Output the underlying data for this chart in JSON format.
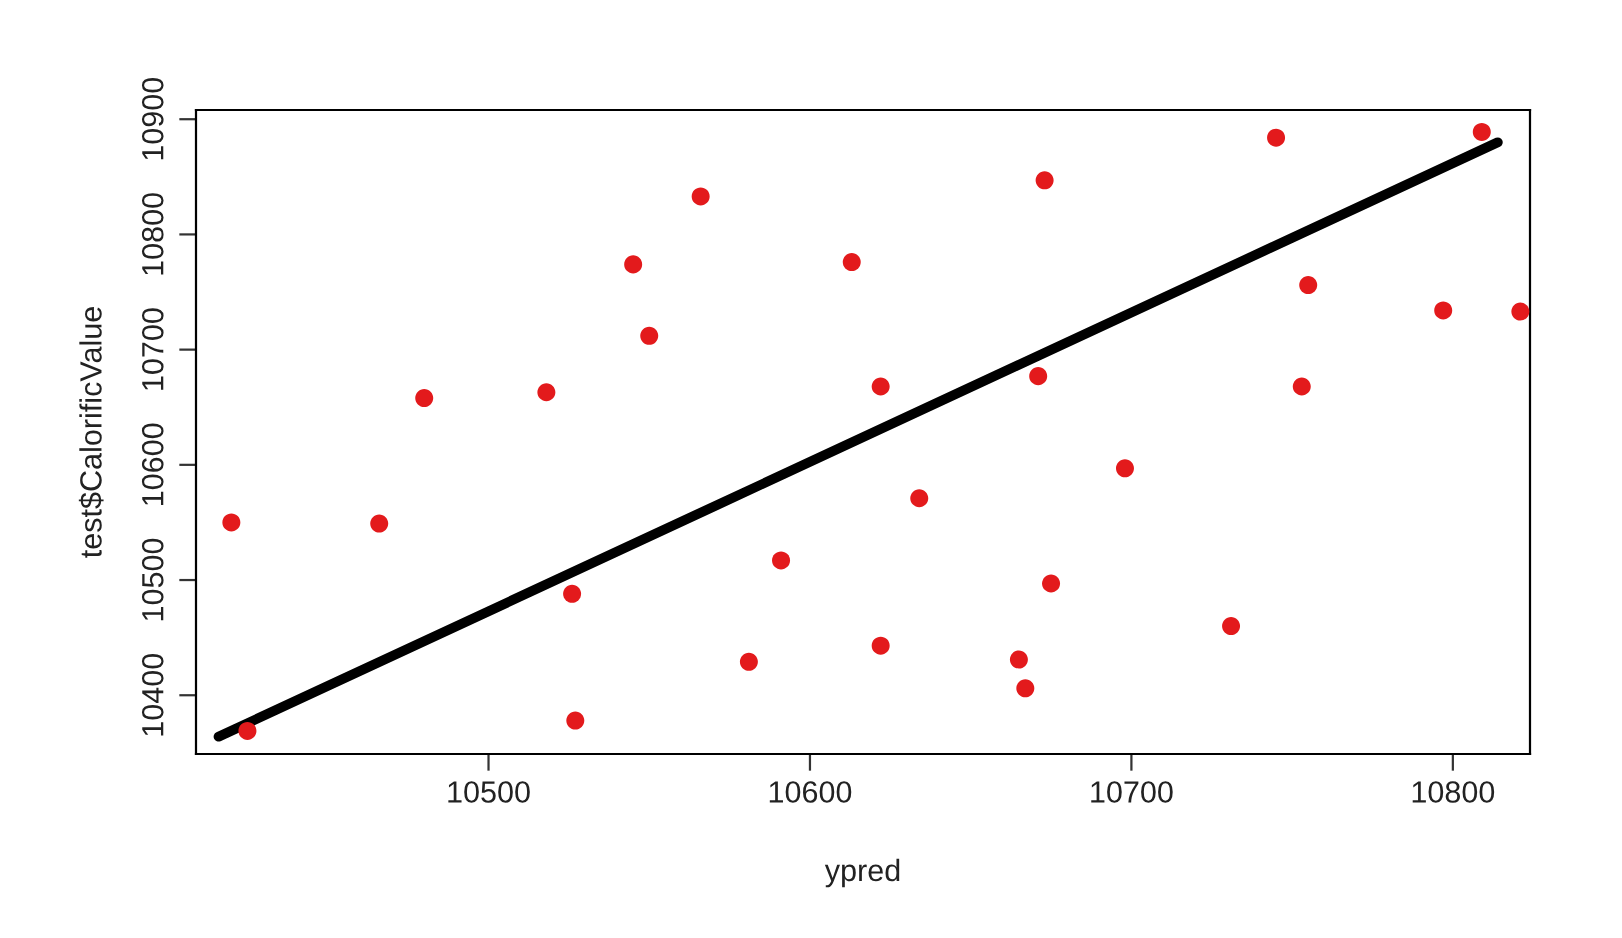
{
  "chart_data": {
    "type": "scatter",
    "xlabel": "ypred",
    "ylabel": "test$CalorificValue",
    "xlim": [
      10409,
      10824
    ],
    "ylim": [
      10349,
      10908
    ],
    "xticks": [
      10500,
      10600,
      10700,
      10800
    ],
    "yticks": [
      10400,
      10500,
      10600,
      10700,
      10800,
      10900
    ],
    "grid": false,
    "legend": false,
    "series": [
      {
        "marker": "circle",
        "color": "#e31a1c",
        "x": [
          10420,
          10425,
          10466,
          10480,
          10518,
          10526,
          10527,
          10545,
          10550,
          10566,
          10581,
          10591,
          10613,
          10622,
          10622,
          10634,
          10671,
          10673,
          10665,
          10667,
          10675,
          10698,
          10731,
          10745,
          10753,
          10755,
          10797,
          10809,
          10821
        ],
        "values": [
          10550,
          10369,
          10549,
          10658,
          10663,
          10488,
          10378,
          10774,
          10712,
          10833,
          10429,
          10517,
          10776,
          10668,
          10443,
          10571,
          10677,
          10847,
          10431,
          10406,
          10497,
          10597,
          10460,
          10884,
          10668,
          10756,
          10734,
          10889,
          10733
        ]
      },
      {
        "type": "line",
        "color": "#000000",
        "line_style": "solid",
        "x": [
          10416,
          10814
        ],
        "values": [
          10364,
          10880
        ]
      }
    ]
  }
}
